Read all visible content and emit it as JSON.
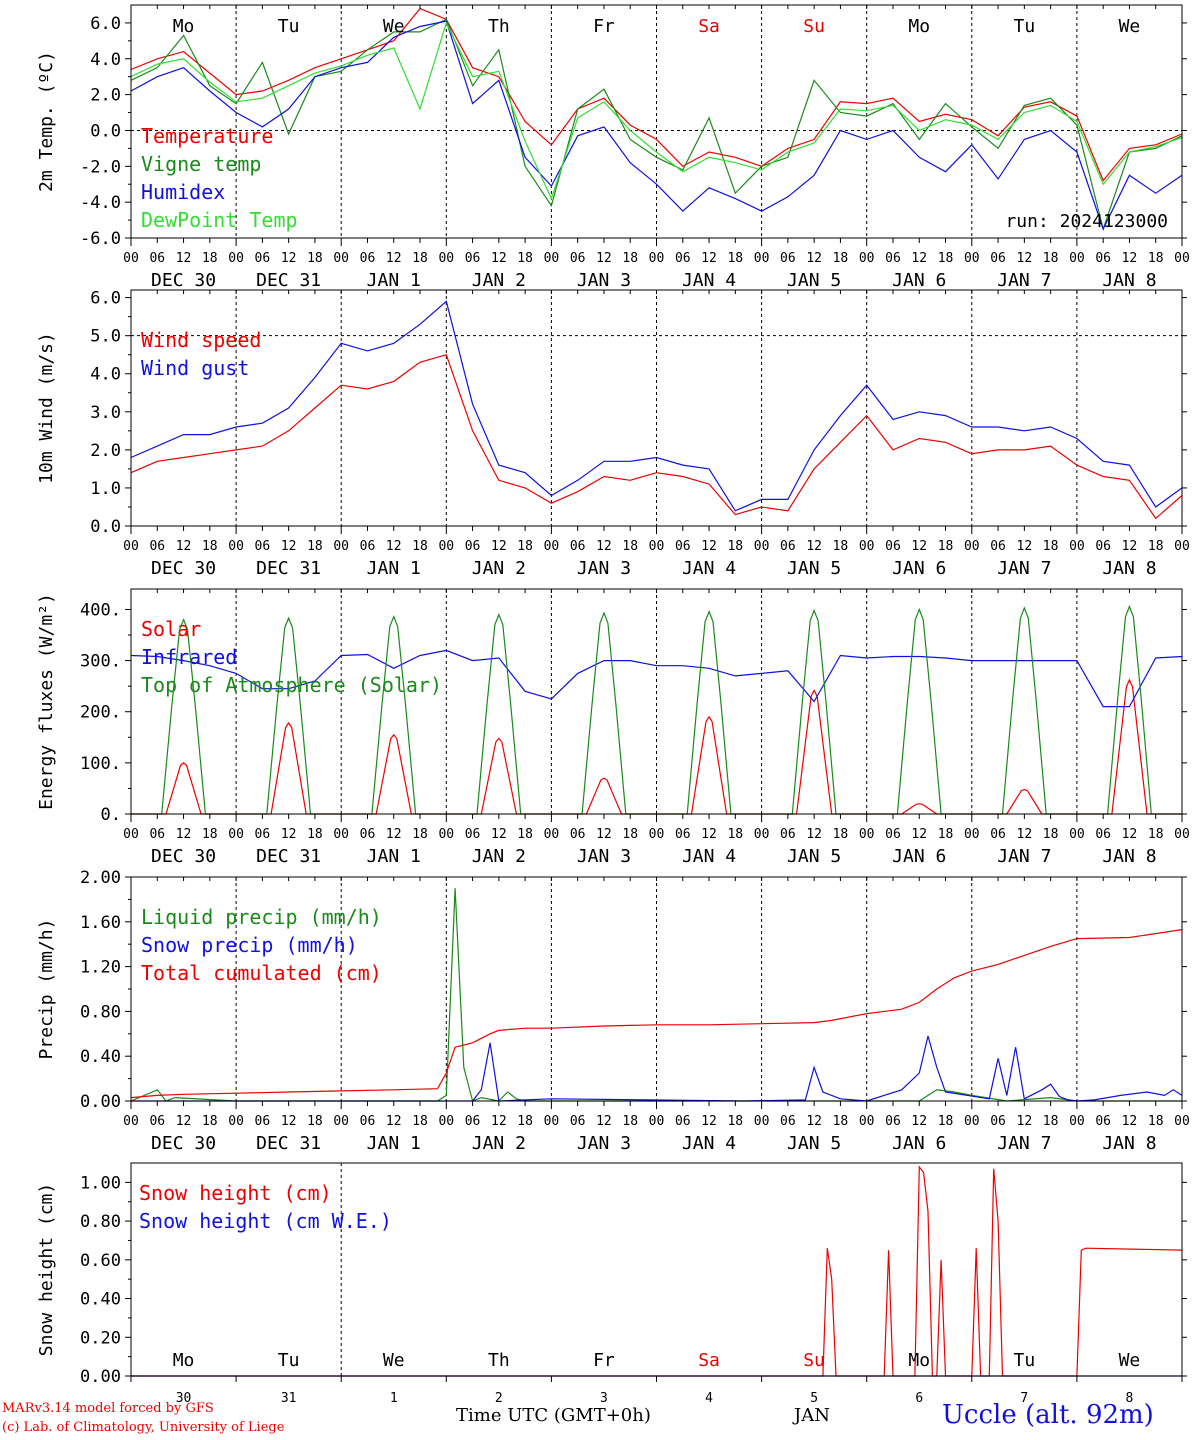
{
  "run_label": "run: 2024123000",
  "footer": {
    "model_line": "MARv3.14 model forced by GFS",
    "credit_line": "(c) Lab. of Climatology, University of Liege",
    "time_axis_label": "Time UTC (GMT+0h)",
    "month_label": "JAN",
    "station": "Uccle (alt. 92m)"
  },
  "colors": {
    "red": "#ee0000",
    "green": "#1a8a1a",
    "blue": "#1010e0",
    "light_green": "#33dd33",
    "text": "#000000"
  },
  "days": [
    {
      "weekday": "Mo",
      "date": "DEC 30",
      "num": "30",
      "weekend": false
    },
    {
      "weekday": "Tu",
      "date": "DEC 31",
      "num": "31",
      "weekend": false
    },
    {
      "weekday": "We",
      "date": "JAN  1",
      "num": "1",
      "weekend": false
    },
    {
      "weekday": "Th",
      "date": "JAN  2",
      "num": "2",
      "weekend": false
    },
    {
      "weekday": "Fr",
      "date": "JAN  3",
      "num": "3",
      "weekend": false
    },
    {
      "weekday": "Sa",
      "date": "JAN  4",
      "num": "4",
      "weekend": true
    },
    {
      "weekday": "Su",
      "date": "JAN  5",
      "num": "5",
      "weekend": true
    },
    {
      "weekday": "Mo",
      "date": "JAN  6",
      "num": "6",
      "weekend": false
    },
    {
      "weekday": "Tu",
      "date": "JAN  7",
      "num": "7",
      "weekend": false
    },
    {
      "weekday": "We",
      "date": "JAN  8",
      "num": "8",
      "weekend": false
    }
  ],
  "hour_ticks": [
    "00",
    "06",
    "12",
    "18"
  ],
  "chart_data": [
    {
      "type": "line",
      "ylabel": "2m Temp. (ºC)",
      "ylim": [
        -6,
        7
      ],
      "yticks": [
        -6,
        -4,
        -2,
        0,
        2,
        4,
        6
      ],
      "ytick_labels": [
        "-6.0",
        "-4.0",
        "-2.0",
        "0.0",
        "2.0",
        "4.0",
        "6.0"
      ],
      "ref_line": 0,
      "x_unit": "hours since DEC 30 00 UTC",
      "series": [
        {
          "name": "Temperature",
          "color": "#ee0000",
          "x": [
            0,
            6,
            12,
            18,
            24,
            30,
            36,
            42,
            48,
            54,
            60,
            66,
            72,
            78,
            84,
            90,
            96,
            102,
            108,
            114,
            120,
            126,
            132,
            138,
            144,
            150,
            156,
            162,
            168,
            174,
            180,
            186,
            192,
            198,
            204,
            210,
            216,
            222,
            228,
            234,
            240
          ],
          "y": [
            3.4,
            4,
            4.4,
            3.2,
            2,
            2.2,
            2.8,
            3.5,
            4,
            4.5,
            5,
            6.8,
            6.2,
            3.5,
            3,
            0.5,
            -0.8,
            1.2,
            1.8,
            0.3,
            -0.5,
            -2,
            -1.2,
            -1.5,
            -2,
            -1,
            -0.5,
            1.6,
            1.5,
            1.8,
            0.5,
            0.9,
            0.6,
            -0.3,
            1.3,
            1.6,
            0.8,
            -2.8,
            -1,
            -0.8,
            -0.2
          ]
        },
        {
          "name": "Vigne temp",
          "color": "#1a8a1a",
          "x": [
            0,
            6,
            12,
            18,
            24,
            30,
            36,
            42,
            48,
            54,
            60,
            66,
            72,
            78,
            84,
            90,
            96,
            102,
            108,
            114,
            120,
            126,
            132,
            138,
            144,
            150,
            156,
            162,
            168,
            174,
            180,
            186,
            192,
            198,
            204,
            210,
            216,
            222,
            228,
            234,
            240
          ],
          "y": [
            2.8,
            3.5,
            5.3,
            2.5,
            1.5,
            3.8,
            -0.2,
            3,
            3.3,
            4.5,
            5.5,
            5.5,
            6.2,
            2.5,
            4.5,
            -2,
            -4.2,
            1.2,
            2.3,
            -0.5,
            -1.5,
            -2.2,
            0.7,
            -3.5,
            -2,
            -1.5,
            2.8,
            1,
            0.8,
            1.5,
            -0.5,
            1.5,
            0.2,
            -1,
            1.4,
            1.8,
            0.3,
            -5.5,
            -1.2,
            -1,
            -0.3
          ]
        },
        {
          "name": "Humidex",
          "color": "#1010e0",
          "x": [
            0,
            6,
            12,
            18,
            24,
            30,
            36,
            42,
            48,
            54,
            60,
            66,
            72,
            78,
            84,
            90,
            96,
            102,
            108,
            114,
            120,
            126,
            132,
            138,
            144,
            150,
            156,
            162,
            168,
            174,
            180,
            186,
            192,
            198,
            204,
            210,
            216,
            222,
            228,
            234,
            240
          ],
          "y": [
            2.2,
            3,
            3.5,
            2.2,
            1,
            0.2,
            1.2,
            3,
            3.5,
            3.8,
            5.2,
            5.8,
            6.1,
            1.5,
            2.8,
            -1.5,
            -3.1,
            -0.3,
            0.2,
            -1.8,
            -3,
            -4.5,
            -3.2,
            -3.8,
            -4.5,
            -3.7,
            -2.5,
            0,
            -0.5,
            0,
            -1.5,
            -2.3,
            -0.8,
            -2.7,
            -0.5,
            0,
            -1.2,
            -5.5,
            -2.5,
            -3.5,
            -2.5
          ]
        },
        {
          "name": "DewPoint Temp",
          "color": "#33dd33",
          "x": [
            0,
            6,
            12,
            18,
            24,
            30,
            36,
            42,
            48,
            54,
            60,
            66,
            72,
            78,
            84,
            90,
            96,
            102,
            108,
            114,
            120,
            126,
            132,
            138,
            144,
            150,
            156,
            162,
            168,
            174,
            180,
            186,
            192,
            198,
            204,
            210,
            216,
            222,
            228,
            234,
            240
          ],
          "y": [
            3,
            3.7,
            4,
            2.7,
            1.6,
            1.8,
            2.5,
            3.2,
            3.6,
            4.2,
            4.6,
            1.2,
            6,
            3,
            3.3,
            -0.6,
            -3.8,
            0.7,
            1.6,
            0,
            -1.2,
            -2.3,
            -1.5,
            -1.8,
            -2.2,
            -1.2,
            -0.7,
            1.2,
            1.1,
            1.4,
            0,
            0.6,
            0.3,
            -0.5,
            1,
            1.4,
            0.5,
            -3,
            -1.2,
            -0.9,
            -0.4
          ]
        }
      ]
    },
    {
      "type": "line",
      "ylabel": "10m Wind (m/s)",
      "ylim": [
        0,
        6.2
      ],
      "yticks": [
        0,
        1,
        2,
        3,
        4,
        5,
        6
      ],
      "ytick_labels": [
        "0.0",
        "1.0",
        "2.0",
        "3.0",
        "4.0",
        "5.0",
        "6.0"
      ],
      "ref_line": 5,
      "x_unit": "hours since DEC 30 00 UTC",
      "series": [
        {
          "name": "Wind speed",
          "color": "#ee0000",
          "x": [
            0,
            6,
            12,
            18,
            24,
            30,
            36,
            42,
            48,
            54,
            60,
            66,
            72,
            78,
            84,
            90,
            96,
            102,
            108,
            114,
            120,
            126,
            132,
            138,
            144,
            150,
            156,
            162,
            168,
            174,
            180,
            186,
            192,
            198,
            204,
            210,
            216,
            222,
            228,
            234,
            240
          ],
          "y": [
            1.4,
            1.7,
            1.8,
            1.9,
            2,
            2.1,
            2.5,
            3.1,
            3.7,
            3.6,
            3.8,
            4.3,
            4.5,
            2.5,
            1.2,
            1,
            0.6,
            0.9,
            1.3,
            1.2,
            1.4,
            1.3,
            1.1,
            0.3,
            0.5,
            0.4,
            1.5,
            2.2,
            2.9,
            2,
            2.3,
            2.2,
            1.9,
            2,
            2,
            2.1,
            1.6,
            1.3,
            1.2,
            0.2,
            0.8
          ]
        },
        {
          "name": "Wind gust",
          "color": "#1010e0",
          "x": [
            0,
            6,
            12,
            18,
            24,
            30,
            36,
            42,
            48,
            54,
            60,
            66,
            72,
            78,
            84,
            90,
            96,
            102,
            108,
            114,
            120,
            126,
            132,
            138,
            144,
            150,
            156,
            162,
            168,
            174,
            180,
            186,
            192,
            198,
            204,
            210,
            216,
            222,
            228,
            234,
            240
          ],
          "y": [
            1.8,
            2.1,
            2.4,
            2.4,
            2.6,
            2.7,
            3.1,
            3.9,
            4.8,
            4.6,
            4.8,
            5.3,
            5.9,
            3.2,
            1.6,
            1.4,
            0.8,
            1.2,
            1.7,
            1.7,
            1.8,
            1.6,
            1.5,
            0.4,
            0.7,
            0.7,
            2,
            2.9,
            3.7,
            2.8,
            3,
            2.9,
            2.6,
            2.6,
            2.5,
            2.6,
            2.3,
            1.7,
            1.6,
            0.5,
            1
          ]
        }
      ]
    },
    {
      "type": "line",
      "ylabel": "Energy fluxes (W/m²)",
      "ylim": [
        0,
        440
      ],
      "yticks": [
        0,
        100,
        200,
        300,
        400
      ],
      "ytick_labels": [
        "0.",
        "100.",
        "200.",
        "300.",
        "400."
      ],
      "x_unit": "hours since DEC 30 00 UTC",
      "series": [
        {
          "name": "Solar",
          "color": "#ee0000",
          "peak_hour": 12,
          "daily_peaks": [
            100,
            178,
            155,
            148,
            70,
            190,
            242,
            20,
            48,
            262
          ]
        },
        {
          "name": "Infrared",
          "color": "#1010e0",
          "x": [
            0,
            6,
            12,
            18,
            24,
            30,
            36,
            42,
            48,
            54,
            60,
            66,
            72,
            78,
            84,
            90,
            96,
            102,
            108,
            114,
            120,
            126,
            132,
            138,
            144,
            150,
            156,
            162,
            168,
            174,
            180,
            186,
            192,
            198,
            204,
            210,
            216,
            222,
            228,
            234,
            240
          ],
          "y": [
            310,
            308,
            300,
            290,
            275,
            245,
            245,
            260,
            310,
            312,
            285,
            310,
            320,
            300,
            305,
            240,
            225,
            275,
            300,
            300,
            290,
            290,
            285,
            270,
            275,
            280,
            220,
            310,
            305,
            308,
            308,
            305,
            300,
            300,
            300,
            300,
            300,
            210,
            210,
            305,
            308
          ]
        },
        {
          "name": "Top of Atmosphere (Solar)",
          "color": "#1a8a1a",
          "peak_hour": 12,
          "daily_peaks": [
            380,
            383,
            386,
            390,
            393,
            396,
            398,
            400,
            403,
            406
          ]
        }
      ]
    },
    {
      "type": "line",
      "ylabel": "Precip (mm/h)",
      "ylim": [
        0,
        2.0
      ],
      "yticks": [
        0,
        0.4,
        0.8,
        1.2,
        1.6,
        2.0
      ],
      "ytick_labels": [
        "0.00",
        "0.40",
        "0.80",
        "1.20",
        "1.60",
        "2.00"
      ],
      "x_unit": "hours since DEC 30 00 UTC",
      "series": [
        {
          "name": "Liquid precip (mm/h)",
          "color": "#1a8a1a",
          "x": [
            0,
            6,
            8,
            10,
            24,
            48,
            70,
            72,
            74,
            76,
            78,
            80,
            84,
            86,
            88,
            90,
            96,
            120,
            140,
            160,
            168,
            180,
            184,
            188,
            192,
            200,
            210,
            216,
            220,
            240
          ],
          "y": [
            0,
            0.1,
            0,
            0.03,
            0,
            0,
            0,
            0.05,
            1.9,
            0.3,
            0,
            0.03,
            0,
            0.08,
            0.02,
            0,
            0,
            0,
            0,
            0,
            0,
            0,
            0.1,
            0.08,
            0.05,
            0,
            0.03,
            0,
            0,
            0
          ]
        },
        {
          "name": "Snow precip (mm/h)",
          "color": "#1010e0",
          "x": [
            0,
            24,
            48,
            72,
            78,
            80,
            82,
            84,
            96,
            140,
            154,
            156,
            158,
            162,
            168,
            176,
            180,
            182,
            184,
            186,
            196,
            198,
            200,
            202,
            204,
            208,
            210,
            212,
            214,
            216,
            220,
            226,
            232,
            236,
            238,
            240
          ],
          "y": [
            0,
            0,
            0,
            0,
            0,
            0.1,
            0.52,
            0,
            0.02,
            0,
            0.01,
            0.3,
            0.08,
            0.02,
            0,
            0.1,
            0.25,
            0.58,
            0.3,
            0.08,
            0.02,
            0.38,
            0.05,
            0.48,
            0.02,
            0.1,
            0.15,
            0.04,
            0.01,
            0,
            0.01,
            0.05,
            0.08,
            0.05,
            0.1,
            0.05
          ]
        },
        {
          "name": "Total cumulated (cm)",
          "color": "#ee0000",
          "x": [
            0,
            6,
            12,
            24,
            36,
            48,
            60,
            70,
            72,
            74,
            78,
            82,
            84,
            90,
            96,
            108,
            120,
            132,
            144,
            156,
            160,
            168,
            176,
            180,
            184,
            188,
            192,
            198,
            204,
            210,
            216,
            228,
            240
          ],
          "y": [
            0.03,
            0.05,
            0.06,
            0.07,
            0.08,
            0.09,
            0.1,
            0.11,
            0.25,
            0.48,
            0.52,
            0.6,
            0.63,
            0.65,
            0.65,
            0.67,
            0.68,
            0.68,
            0.69,
            0.7,
            0.72,
            0.78,
            0.82,
            0.88,
            1,
            1.1,
            1.16,
            1.22,
            1.3,
            1.38,
            1.45,
            1.46,
            1.53
          ]
        }
      ]
    },
    {
      "type": "line",
      "ylabel": "Snow height (cm)",
      "ylim": [
        0,
        1.1
      ],
      "yticks": [
        0,
        0.2,
        0.4,
        0.6,
        0.8,
        1.0
      ],
      "ytick_labels": [
        "0.00",
        "0.20",
        "0.40",
        "0.60",
        "0.80",
        "1.00"
      ],
      "x_unit": "hours since DEC 30 00 UTC",
      "series": [
        {
          "name": "Snow height (cm)",
          "color": "#ee0000",
          "x": [
            0,
            158,
            159,
            160,
            161,
            172,
            173,
            174,
            175,
            179,
            180,
            181,
            182,
            183,
            184,
            185,
            186,
            187,
            192,
            193,
            194,
            196,
            197,
            198,
            199,
            216,
            217,
            218,
            240
          ],
          "y": [
            0,
            0,
            0.66,
            0.5,
            0,
            0,
            0.65,
            0,
            0,
            0,
            1.08,
            1.05,
            0.85,
            0,
            0,
            0.6,
            0,
            0,
            0,
            0.66,
            0,
            0,
            1.07,
            0.8,
            0,
            0,
            0.65,
            0.66,
            0.65
          ]
        },
        {
          "name": "Snow height (cm W.E.)",
          "color": "#1010e0",
          "x": [
            0,
            240
          ],
          "y": [
            0,
            0
          ]
        }
      ]
    }
  ]
}
